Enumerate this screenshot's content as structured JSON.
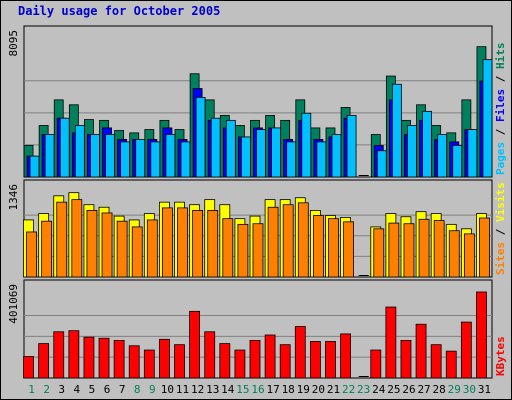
{
  "chart_data": {
    "type": "bar",
    "title": "Daily usage for October 2005",
    "days": [
      "1",
      "2",
      "3",
      "4",
      "5",
      "6",
      "7",
      "8",
      "9",
      "10",
      "11",
      "12",
      "13",
      "14",
      "15",
      "16",
      "17",
      "18",
      "19",
      "20",
      "21",
      "22",
      "23",
      "24",
      "25",
      "26",
      "27",
      "28",
      "29",
      "30",
      "31"
    ],
    "weekend_days": [
      "1",
      "2",
      "8",
      "9",
      "15",
      "16",
      "22",
      "23",
      "29",
      "30"
    ],
    "colors": {
      "hits": "#00805c",
      "files": "#0000ff",
      "pages": "#00c0ff",
      "visits": "#ffff00",
      "sites": "#ff8000",
      "kbytes": "#ff0000",
      "title": "#0000cc",
      "weekday_label": "#000000",
      "weekend_label": "#00805c"
    },
    "panels": [
      {
        "id": "hits-files-pages",
        "max_label": "8095",
        "ymax": 8095,
        "legend": [
          {
            "text": "Hits",
            "color": "#00805c"
          },
          {
            "text": "Files",
            "color": "#0000ff"
          },
          {
            "text": "Pages",
            "color": "#00c0ff"
          }
        ],
        "series": [
          {
            "name": "Hits",
            "color": "#00805c",
            "values": [
              1930,
              3140,
              4700,
              4400,
              3500,
              3450,
              2830,
              2690,
              2890,
              3450,
              2890,
              6290,
              4700,
              3750,
              3140,
              3450,
              3750,
              3450,
              4700,
              2990,
              2990,
              4240,
              0,
              2590,
              6150,
              3450,
              4400,
              3140,
              2690,
              4700,
              7940
            ]
          },
          {
            "name": "Files",
            "color": "#0000ff",
            "values": [
              1270,
              2590,
              3580,
              2690,
              2590,
              2990,
              2290,
              2290,
              2290,
              2990,
              2290,
              5390,
              3450,
              2990,
              2440,
              2990,
              2990,
              2290,
              3450,
              2290,
              2440,
              3580,
              0,
              1920,
              4700,
              2590,
              3450,
              2290,
              2140,
              2890,
              5840
            ]
          },
          {
            "name": "Pages",
            "color": "#00c0ff",
            "values": [
              1270,
              2590,
              3580,
              3140,
              2590,
              2590,
              2140,
              2290,
              2140,
              2590,
              2140,
              4850,
              3580,
              3450,
              2440,
              2890,
              2990,
              2140,
              3880,
              2140,
              2590,
              3750,
              0,
              1600,
              5650,
              3140,
              4000,
              2590,
              1920,
              2890,
              7150
            ]
          }
        ]
      },
      {
        "id": "visits-sites",
        "max_label": "1346",
        "ymax": 1346,
        "legend": [
          {
            "text": "Visits",
            "color": "#ffff00"
          },
          {
            "text": "Sites",
            "color": "#ff8000"
          }
        ],
        "series": [
          {
            "name": "Visits",
            "color": "#ffff00",
            "values": [
              900,
              1000,
              1280,
              1330,
              1140,
              1100,
              960,
              900,
              1000,
              1180,
              1180,
              1140,
              1220,
              1140,
              920,
              960,
              1220,
              1220,
              1250,
              1050,
              970,
              940,
              0,
              790,
              1000,
              950,
              1030,
              1000,
              830,
              760,
              1000
            ]
          },
          {
            "name": "Sites",
            "color": "#ff8000",
            "values": [
              710,
              880,
              1180,
              1220,
              1050,
              1010,
              880,
              790,
              900,
              1090,
              1090,
              1050,
              1050,
              920,
              830,
              840,
              1100,
              1140,
              1170,
              970,
              920,
              870,
              0,
              760,
              850,
              840,
              910,
              890,
              730,
              680,
              930
            ]
          }
        ]
      },
      {
        "id": "kbytes",
        "max_label": "401069",
        "ymax": 401069,
        "legend": [
          {
            "text": "KBytes",
            "color": "#ff0000"
          }
        ],
        "series": [
          {
            "name": "KBytes",
            "color": "#ff0000",
            "values": [
              100000,
              160000,
              215000,
              220000,
              190000,
              185000,
              175000,
              150000,
              130000,
              180000,
              155000,
              310000,
              215000,
              160000,
              130000,
              175000,
              200000,
              155000,
              240000,
              170000,
              170000,
              205000,
              0,
              130000,
              330000,
              175000,
              250000,
              155000,
              125000,
              260000,
              400000
            ]
          }
        ]
      }
    ]
  }
}
